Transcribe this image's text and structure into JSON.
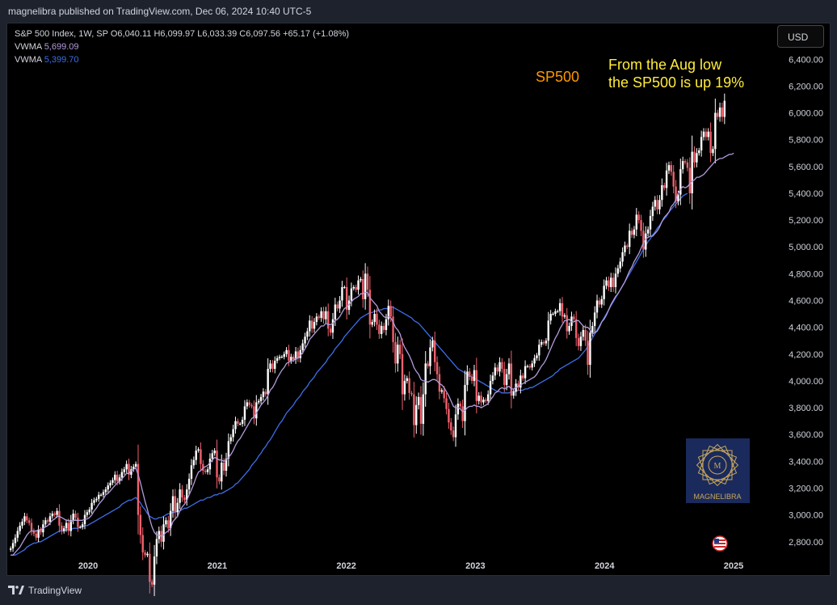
{
  "header": {
    "published": "magnelibra published on TradingView.com, Dec 06, 2024 10:40 UTC-5"
  },
  "legend": {
    "symbol_line": "S&P 500 Index, 1W, SP  O6,040.11  H6,099.97  L6,033.39  C6,097.56  +65.17 (+1.08%)",
    "vwma1_label": "VWMA",
    "vwma1_value": "5,699.09",
    "vwma2_label": "VWMA",
    "vwma2_value": "5,399.70"
  },
  "currency": "USD",
  "footer": {
    "brand": "TradingView"
  },
  "annotations": {
    "sp500": "SP500",
    "note_line1": "From the Aug low",
    "note_line2": "the SP500 is up 19%"
  },
  "watermark": {
    "text": "MAGNELIBRA"
  },
  "colors": {
    "up": "#ffffff",
    "down": "#f0616d",
    "vwma_fast": "#b39ddb",
    "vwma_slow": "#3d6ee8",
    "annotation_orange": "#ff9800",
    "annotation_yellow": "#ffeb3b"
  },
  "chart_data": {
    "type": "candlestick",
    "interval": "1W",
    "x_range": [
      2019.38,
      2025.0
    ],
    "y_range": [
      2690,
      6480
    ],
    "y_ticks": [
      "2,800.00",
      "3,000.00",
      "3,200.00",
      "3,400.00",
      "3,600.00",
      "3,800.00",
      "4,000.00",
      "4,200.00",
      "4,400.00",
      "4,600.00",
      "4,800.00",
      "5,000.00",
      "5,200.00",
      "5,400.00",
      "5,600.00",
      "5,800.00",
      "6,000.00",
      "6,200.00",
      "6,400.00"
    ],
    "x_ticks": [
      {
        "label": "2020",
        "x": 2020.0
      },
      {
        "label": "2021",
        "x": 2021.0
      },
      {
        "label": "2022",
        "x": 2022.0
      },
      {
        "label": "2023",
        "x": 2023.0
      },
      {
        "label": "2024",
        "x": 2024.0
      },
      {
        "label": "2025",
        "x": 2025.0
      }
    ],
    "closes": [
      2750,
      2790,
      2830,
      2880,
      2920,
      2950,
      2990,
      2960,
      2940,
      2880,
      2860,
      2830,
      2890,
      2870,
      2930,
      2960,
      2950,
      2990,
      3010,
      3000,
      3030,
      2920,
      2880,
      2900,
      2940,
      2880,
      2960,
      3010,
      2980,
      2910,
      2910,
      2930,
      3000,
      3020,
      3040,
      3090,
      3110,
      3120,
      3150,
      3150,
      3170,
      3190,
      3220,
      3240,
      3260,
      3300,
      3250,
      3280,
      3320,
      3340,
      3380,
      3300,
      3340,
      3360,
      3380,
      3000,
      2850,
      2720,
      2700,
      2710,
      2500,
      2480,
      2690,
      2820,
      2880,
      2800,
      2930,
      2960,
      2900,
      3030,
      3140,
      3020,
      3090,
      3190,
      3130,
      3110,
      3190,
      3270,
      3370,
      3410,
      3480,
      3490,
      3380,
      3330,
      3320,
      3340,
      3420,
      3460,
      3480,
      3280,
      3250,
      3390,
      3330,
      3420,
      3550,
      3580,
      3640,
      3700,
      3680,
      3680,
      3710,
      3810,
      3840,
      3820,
      3810,
      3720,
      3840,
      3850,
      3880,
      3920,
      3900,
      4090,
      4130,
      4090,
      4150,
      4170,
      4180,
      4180,
      4200,
      4230,
      4150,
      4180,
      4160,
      4220,
      4170,
      4230,
      4280,
      4330,
      4370,
      4450,
      4390,
      4440,
      4480,
      4470,
      4520,
      4460,
      4520,
      4390,
      4360,
      4460,
      4570,
      4540,
      4600,
      4700,
      4700,
      4530,
      4600,
      4690,
      4700,
      4680,
      4750,
      4760,
      4610,
      4800,
      4680,
      4420,
      4440,
      4500,
      4420,
      4350,
      4410,
      4380,
      4460,
      4560,
      4480,
      4290,
      4130,
      4270,
      4200,
      3900,
      4000,
      4020,
      3910,
      3900,
      3670,
      3820,
      3880,
      3680,
      3900,
      4130,
      4110,
      4250,
      4300,
      4140,
      4050,
      3920,
      3930,
      3870,
      3790,
      3690,
      3630,
      3580,
      3750,
      3830,
      3810,
      3700,
      3970,
      4070,
      4030,
      4000,
      4080,
      3850,
      3890,
      3840,
      3860,
      3850,
      3900,
      4000,
      4040,
      4100,
      4070,
      4140,
      4090,
      3970,
      4050,
      4130,
      3890,
      3920,
      3980,
      3950,
      4040,
      4020,
      4110,
      4110,
      4100,
      4130,
      4170,
      4190,
      4270,
      4290,
      4280,
      4300,
      4450,
      4500,
      4500,
      4520,
      4520,
      4580,
      4480,
      4490,
      4370,
      4410,
      4480,
      4460,
      4320,
      4260,
      4330,
      4380,
      4300,
      4120,
      4360,
      4410,
      4510,
      4600,
      4570,
      4610,
      4710,
      4750,
      4700,
      4770,
      4700,
      4800,
      4840,
      4890,
      4960,
      5010,
      5000,
      5120,
      5090,
      5130,
      5240,
      5200,
      5120,
      4980,
      5100,
      5130,
      5230,
      5300,
      5350,
      5280,
      5350,
      5460,
      5440,
      5570,
      5610,
      5560,
      5450,
      5340,
      5390,
      5580,
      5640,
      5630,
      5590,
      5400,
      5710,
      5630,
      5700,
      5720,
      5820,
      5860,
      5820,
      5860,
      5700,
      5730,
      6000,
      5970,
      6040,
      5970,
      6090
    ],
    "vwma_fast": [
      2700,
      2700,
      2720,
      2740,
      2760,
      2790,
      2820,
      2850,
      2870,
      2880,
      2880,
      2880,
      2890,
      2890,
      2900,
      2910,
      2920,
      2940,
      2960,
      2970,
      2990,
      2990,
      2980,
      2970,
      2960,
      2960,
      2950,
      2960,
      2960,
      2960,
      2960,
      2960,
      2970,
      2970,
      2980,
      3000,
      3030,
      3050,
      3080,
      3100,
      3120,
      3150,
      3160,
      3180,
      3200,
      3220,
      3240,
      3250,
      3270,
      3290,
      3310,
      3310,
      3330,
      3340,
      3350,
      3300,
      3240,
      3170,
      3100,
      3040,
      2970,
      2910,
      2870,
      2850,
      2850,
      2840,
      2850,
      2870,
      2880,
      2900,
      2950,
      2970,
      2990,
      3030,
      3060,
      3080,
      3110,
      3150,
      3190,
      3230,
      3280,
      3320,
      3330,
      3350,
      3360,
      3370,
      3390,
      3410,
      3430,
      3420,
      3410,
      3410,
      3400,
      3410,
      3430,
      3450,
      3480,
      3520,
      3550,
      3570,
      3600,
      3630,
      3660,
      3690,
      3720,
      3730,
      3760,
      3790,
      3820,
      3840,
      3860,
      3890,
      3930,
      3950,
      3980,
      4020,
      4050,
      4080,
      4100,
      4130,
      4140,
      4150,
      4150,
      4170,
      4170,
      4190,
      4210,
      4240,
      4270,
      4310,
      4330,
      4350,
      4370,
      4390,
      4410,
      4410,
      4430,
      4420,
      4420,
      4430,
      4450,
      4460,
      4480,
      4510,
      4540,
      4550,
      4570,
      4590,
      4610,
      4620,
      4630,
      4650,
      4650,
      4660,
      4660,
      4620,
      4600,
      4580,
      4560,
      4520,
      4500,
      4480,
      4470,
      4480,
      4470,
      4440,
      4400,
      4380,
      4350,
      4290,
      4250,
      4220,
      4190,
      4150,
      4100,
      4070,
      4050,
      4010,
      4000,
      4000,
      3990,
      4000,
      4010,
      4010,
      4000,
      3980,
      3970,
      3950,
      3920,
      3890,
      3850,
      3810,
      3800,
      3800,
      3790,
      3770,
      3780,
      3800,
      3810,
      3810,
      3820,
      3810,
      3810,
      3800,
      3810,
      3820,
      3830,
      3860,
      3880,
      3910,
      3920,
      3940,
      3950,
      3940,
      3950,
      3960,
      3940,
      3940,
      3950,
      3960,
      3970,
      3980,
      3990,
      4000,
      4010,
      4020,
      4030,
      4050,
      4080,
      4110,
      4130,
      4160,
      4200,
      4240,
      4280,
      4320,
      4350,
      4390,
      4420,
      4450,
      4450,
      4460,
      4440,
      4440,
      4450,
      4450,
      4430,
      4410,
      4400,
      4400,
      4380,
      4350,
      4360,
      4370,
      4400,
      4440,
      4460,
      4490,
      4530,
      4570,
      4600,
      4630,
      4650,
      4680,
      4710,
      4740,
      4780,
      4820,
      4850,
      4890,
      4920,
      4950,
      4990,
      5030,
      5060,
      5070,
      5080,
      5080,
      5100,
      5120,
      5150,
      5190,
      5220,
      5240,
      5260,
      5300,
      5320,
      5350,
      5400,
      5430,
      5450,
      5440,
      5450,
      5470,
      5490,
      5500,
      5520,
      5520,
      5530,
      5540,
      5560,
      5580,
      5600,
      5620,
      5640,
      5650,
      5660,
      5660,
      5670,
      5680,
      5690,
      5690,
      5699
    ],
    "vwma_slow": [
      2700,
      2700,
      2700,
      2710,
      2720,
      2730,
      2740,
      2760,
      2770,
      2780,
      2790,
      2790,
      2800,
      2800,
      2810,
      2820,
      2830,
      2840,
      2850,
      2860,
      2870,
      2880,
      2880,
      2880,
      2890,
      2890,
      2890,
      2900,
      2900,
      2900,
      2910,
      2910,
      2920,
      2920,
      2930,
      2940,
      2950,
      2960,
      2970,
      2980,
      2990,
      3000,
      3010,
      3020,
      3030,
      3040,
      3050,
      3060,
      3080,
      3090,
      3100,
      3110,
      3110,
      3120,
      3130,
      3110,
      3090,
      3060,
      3040,
      3010,
      2990,
      2980,
      2970,
      2970,
      2980,
      2980,
      2990,
      3000,
      3010,
      3010,
      3020,
      3020,
      3030,
      3030,
      3040,
      3050,
      3050,
      3060,
      3070,
      3080,
      3090,
      3100,
      3110,
      3110,
      3120,
      3130,
      3130,
      3140,
      3150,
      3150,
      3160,
      3160,
      3170,
      3180,
      3190,
      3200,
      3210,
      3230,
      3240,
      3260,
      3280,
      3300,
      3320,
      3340,
      3370,
      3390,
      3410,
      3440,
      3460,
      3490,
      3510,
      3540,
      3560,
      3590,
      3620,
      3650,
      3680,
      3700,
      3730,
      3760,
      3780,
      3800,
      3820,
      3850,
      3870,
      3890,
      3920,
      3940,
      3960,
      3990,
      4010,
      4030,
      4060,
      4080,
      4100,
      4120,
      4140,
      4170,
      4190,
      4210,
      4240,
      4260,
      4280,
      4300,
      4330,
      4350,
      4370,
      4390,
      4410,
      4430,
      4450,
      4470,
      4480,
      4490,
      4500,
      4510,
      4510,
      4520,
      4520,
      4530,
      4530,
      4540,
      4540,
      4540,
      4550,
      4550,
      4540,
      4530,
      4520,
      4510,
      4500,
      4490,
      4480,
      4470,
      4450,
      4440,
      4430,
      4410,
      4390,
      4370,
      4350,
      4330,
      4310,
      4290,
      4270,
      4250,
      4230,
      4210,
      4190,
      4170,
      4150,
      4130,
      4110,
      4090,
      4080,
      4070,
      4060,
      4050,
      4040,
      4030,
      4020,
      4010,
      4000,
      3990,
      3980,
      3970,
      3960,
      3950,
      3940,
      3930,
      3920,
      3920,
      3910,
      3910,
      3910,
      3910,
      3920,
      3920,
      3920,
      3930,
      3930,
      3930,
      3940,
      3940,
      3950,
      3950,
      3960,
      3970,
      3980,
      3990,
      4000,
      4010,
      4020,
      4030,
      4040,
      4060,
      4070,
      4090,
      4100,
      4110,
      4120,
      4130,
      4140,
      4150,
      4160,
      4170,
      4190,
      4210,
      4230,
      4260,
      4290,
      4320,
      4350,
      4380,
      4410,
      4440,
      4470,
      4500,
      4530,
      4560,
      4590,
      4620,
      4650,
      4680,
      4710,
      4740,
      4770,
      4800,
      4830,
      4860,
      4890,
      4920,
      4950,
      4980,
      5010,
      5040,
      5060,
      5090,
      5110,
      5140,
      5160,
      5190,
      5210,
      5230,
      5260,
      5280,
      5300,
      5320,
      5340,
      5360,
      5380,
      5390,
      5399
    ]
  }
}
